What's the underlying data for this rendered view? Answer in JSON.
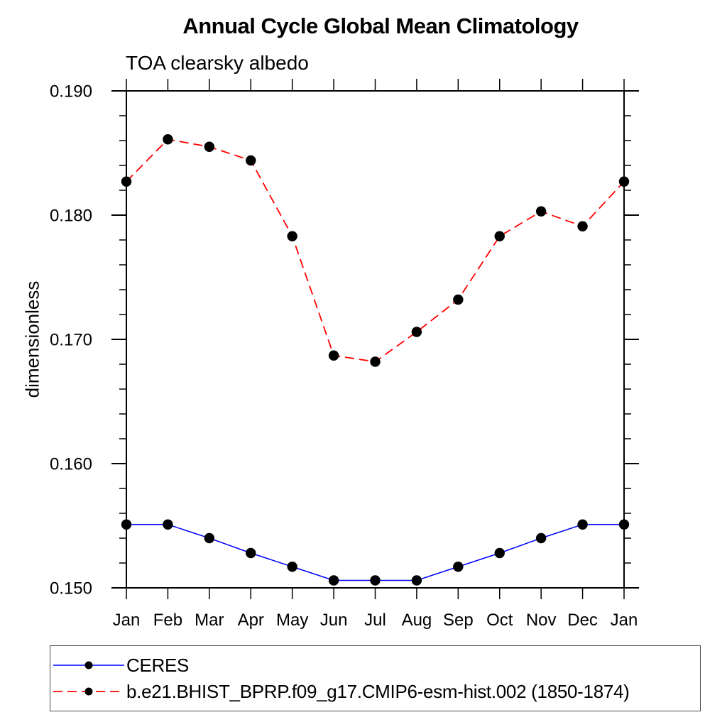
{
  "chart_data": {
    "type": "line",
    "title": "Annual Cycle Global Mean Climatology",
    "subtitle": "TOA clearsky albedo",
    "ylabel": "dimensionless",
    "xlabel": "",
    "x_tick_labels": [
      "Jan",
      "Feb",
      "Mar",
      "Apr",
      "May",
      "Jun",
      "Jul",
      "Aug",
      "Sep",
      "Oct",
      "Nov",
      "Dec",
      "Jan"
    ],
    "ylim": [
      0.15,
      0.19
    ],
    "y_major_ticks": [
      0.15,
      0.16,
      0.17,
      0.18,
      0.19
    ],
    "y_tick_labels": [
      "0.150",
      "0.160",
      "0.170",
      "0.180",
      "0.190"
    ],
    "y_minor_step": 0.002,
    "grid": false,
    "legend_position": "bottom",
    "series": [
      {
        "name": "CERES",
        "color": "#0000ff",
        "line_style": "solid",
        "marker": "filled-circle",
        "marker_color": "#000000",
        "values": [
          0.1551,
          0.1551,
          0.154,
          0.1528,
          0.1517,
          0.1506,
          0.1506,
          0.1506,
          0.1517,
          0.1528,
          0.154,
          0.1551,
          0.1551
        ]
      },
      {
        "name": "b.e21.BHIST_BPRP.f09_g17.CMIP6-esm-hist.002 (1850-1874)",
        "color": "#ff0000",
        "line_style": "dashed",
        "marker": "filled-circle",
        "marker_color": "#000000",
        "values": [
          0.1827,
          0.1861,
          0.1855,
          0.1844,
          0.1783,
          0.1687,
          0.1682,
          0.1706,
          0.1732,
          0.1783,
          0.1803,
          0.1791,
          0.1827
        ]
      }
    ],
    "colors": {
      "axis": "#000000",
      "background": "#ffffff",
      "text": "#000000"
    }
  }
}
